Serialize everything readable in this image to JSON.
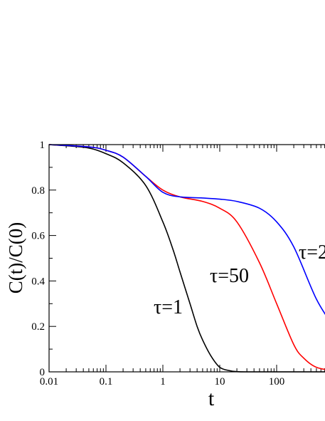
{
  "chart_data": {
    "type": "line",
    "title": "",
    "xlabel": "t",
    "ylabel": "C(t)/C(0)",
    "x_scale": "log",
    "xlim": [
      0.01,
      1000
    ],
    "ylim": [
      0,
      1
    ],
    "x_ticks": [
      "0.01",
      "0.1",
      "1",
      "10",
      "100",
      "1"
    ],
    "y_ticks": [
      "0",
      "0.2",
      "0.4",
      "0.6",
      "0.8",
      "1"
    ],
    "grid": false,
    "legend": "none",
    "annotations": [
      "τ=1",
      "τ=50",
      "τ=2"
    ],
    "series": [
      {
        "name": "τ=1",
        "color": "#000000",
        "x": [
          0.01,
          0.02,
          0.05,
          0.1,
          0.2,
          0.5,
          1,
          1.5,
          2,
          3,
          4,
          5,
          7,
          10,
          15,
          20,
          30,
          100,
          1000
        ],
        "y": [
          1.0,
          0.995,
          0.985,
          0.96,
          0.92,
          0.82,
          0.66,
          0.54,
          0.44,
          0.3,
          0.2,
          0.14,
          0.07,
          0.02,
          0.005,
          0.001,
          0.0,
          0.0,
          0.0
        ]
      },
      {
        "name": "τ=50",
        "color": "#ff0000",
        "x": [
          0.01,
          0.05,
          0.1,
          0.2,
          0.5,
          1,
          2,
          5,
          10,
          20,
          50,
          100,
          200,
          300,
          500,
          1000
        ],
        "y": [
          1.0,
          0.99,
          0.975,
          0.945,
          0.86,
          0.8,
          0.77,
          0.75,
          0.72,
          0.66,
          0.48,
          0.3,
          0.12,
          0.06,
          0.02,
          0.005
        ]
      },
      {
        "name": "τ=2",
        "color": "#0000ff",
        "x": [
          0.01,
          0.05,
          0.1,
          0.2,
          0.5,
          1,
          2,
          5,
          10,
          20,
          50,
          100,
          200,
          500,
          1000
        ],
        "y": [
          1.0,
          0.99,
          0.975,
          0.945,
          0.86,
          0.79,
          0.77,
          0.765,
          0.76,
          0.75,
          0.72,
          0.66,
          0.55,
          0.32,
          0.2
        ]
      }
    ]
  }
}
